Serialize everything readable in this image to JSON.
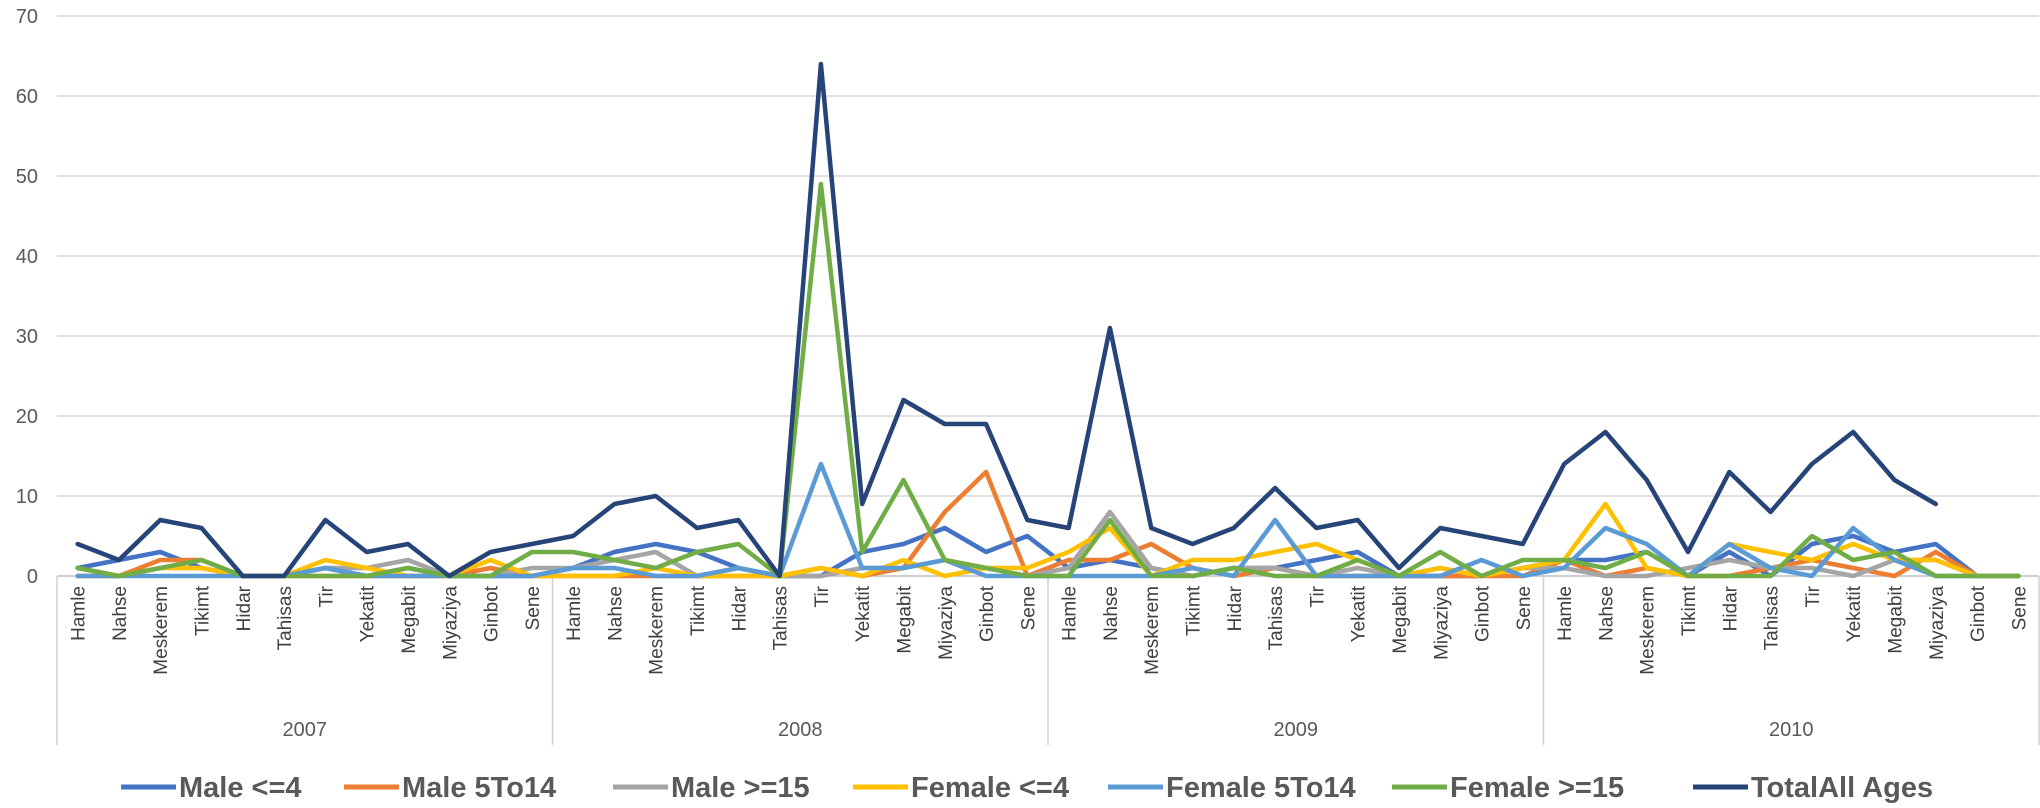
{
  "chart_data": {
    "type": "line",
    "title": "",
    "xlabel": "",
    "ylabel": "",
    "ylim": [
      0,
      70
    ],
    "yticks": [
      0,
      10,
      20,
      30,
      40,
      50,
      60,
      70
    ],
    "grid": true,
    "legend_position": "bottom",
    "years": [
      "2007",
      "2008",
      "2009",
      "2010"
    ],
    "months": [
      "Hamle",
      "Nahse",
      "Meskerem",
      "Tikimt",
      "Hidar",
      "Tahisas",
      "Tir",
      "Yekatit",
      "Megabit",
      "Miyaziya",
      "Ginbot",
      "Sene"
    ],
    "series": [
      {
        "name": "Male <=4",
        "color": "#4472C4",
        "values": [
          1,
          2,
          3,
          1,
          0,
          0,
          1,
          0,
          1,
          0,
          0,
          0,
          1,
          3,
          4,
          3,
          1,
          0,
          0,
          3,
          4,
          6,
          3,
          5,
          1,
          2,
          1,
          0,
          1,
          1,
          2,
          3,
          0,
          0,
          0,
          1,
          2,
          2,
          3,
          0,
          3,
          0,
          4,
          5,
          3,
          4,
          0,
          0
        ]
      },
      {
        "name": "Male 5To14",
        "color": "#ED7D31",
        "values": [
          1,
          0,
          2,
          2,
          0,
          0,
          0,
          0,
          0,
          0,
          1,
          0,
          0,
          0,
          0,
          0,
          0,
          0,
          1,
          0,
          1,
          8,
          13,
          0,
          2,
          2,
          4,
          1,
          0,
          1,
          0,
          0,
          0,
          0,
          0,
          0,
          2,
          0,
          1,
          0,
          0,
          1,
          2,
          1,
          0,
          3,
          0,
          0
        ]
      },
      {
        "name": "Male >=15",
        "color": "#A5A5A5",
        "values": [
          0,
          0,
          1,
          1,
          0,
          0,
          1,
          1,
          2,
          0,
          0,
          1,
          1,
          2,
          3,
          0,
          1,
          0,
          0,
          1,
          1,
          2,
          1,
          0,
          1,
          8,
          1,
          0,
          1,
          1,
          0,
          1,
          0,
          1,
          0,
          1,
          1,
          0,
          0,
          1,
          2,
          1,
          1,
          0,
          2,
          2,
          0,
          0
        ]
      },
      {
        "name": "Female <=4",
        "color": "#FFC000",
        "values": [
          0,
          0,
          1,
          1,
          0,
          0,
          2,
          1,
          0,
          0,
          2,
          0,
          0,
          0,
          1,
          0,
          0,
          0,
          1,
          0,
          2,
          0,
          1,
          1,
          3,
          6,
          0,
          2,
          2,
          3,
          4,
          2,
          0,
          1,
          0,
          1,
          2,
          9,
          1,
          0,
          4,
          3,
          2,
          4,
          2,
          2,
          0,
          0
        ]
      },
      {
        "name": "Female  5To14",
        "color": "#5B9BD5",
        "values": [
          0,
          0,
          0,
          0,
          0,
          0,
          1,
          0,
          0,
          0,
          0,
          0,
          1,
          1,
          0,
          0,
          1,
          0,
          14,
          1,
          1,
          2,
          0,
          0,
          0,
          0,
          0,
          1,
          0,
          7,
          0,
          0,
          0,
          0,
          2,
          0,
          1,
          6,
          4,
          0,
          4,
          1,
          0,
          6,
          2,
          0,
          0,
          0
        ]
      },
      {
        "name": "Female >=15",
        "color": "#70AD47",
        "values": [
          1,
          0,
          1,
          2,
          0,
          0,
          0,
          0,
          1,
          0,
          0,
          3,
          3,
          2,
          1,
          3,
          4,
          0,
          49,
          3,
          12,
          2,
          1,
          0,
          0,
          7,
          0,
          0,
          1,
          0,
          0,
          2,
          0,
          3,
          0,
          2,
          2,
          1,
          3,
          0,
          0,
          0,
          5,
          2,
          3,
          0,
          0,
          0
        ]
      },
      {
        "name": "TotalAll Ages",
        "color": "#264478",
        "values": [
          4,
          2,
          7,
          6,
          0,
          0,
          7,
          3,
          4,
          0,
          3,
          4,
          5,
          9,
          10,
          6,
          7,
          0,
          64,
          9,
          22,
          19,
          19,
          7,
          6,
          31,
          6,
          4,
          6,
          11,
          6,
          7,
          1,
          6,
          5,
          4,
          14,
          18,
          12,
          3,
          13,
          8,
          14,
          18,
          12,
          9,
          null,
          null
        ]
      }
    ]
  }
}
